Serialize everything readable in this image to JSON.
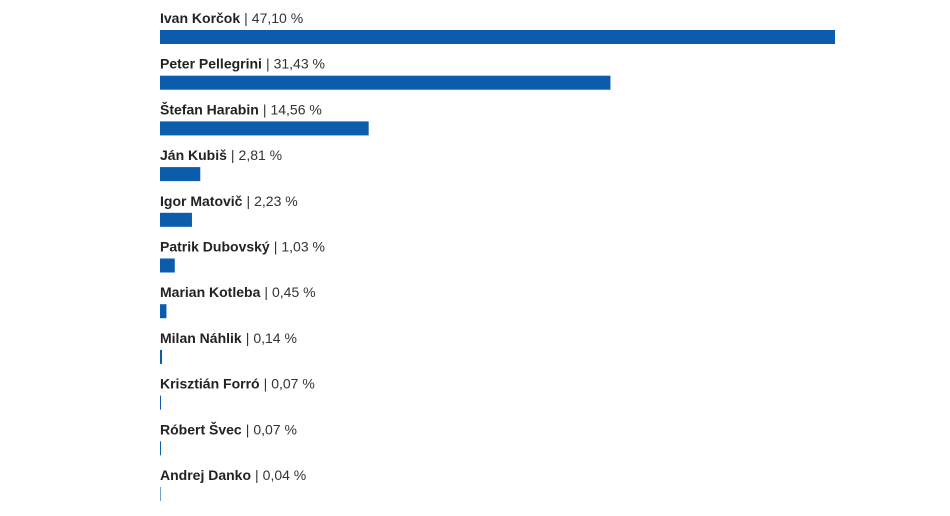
{
  "chart_data": {
    "type": "bar",
    "orientation": "horizontal",
    "separator": "|",
    "color": "#0b5cad",
    "categories": [
      "Ivan Korčok",
      "Peter Pellegrini",
      "Štefan Harabin",
      "Ján Kubiš",
      "Igor Matovič",
      "Patrik Dubovský",
      "Marian Kotleba",
      "Milan Náhlik",
      "Krisztián Forró",
      "Róbert Švec",
      "Andrej Danko"
    ],
    "values": [
      47.1,
      31.43,
      14.56,
      2.81,
      2.23,
      1.03,
      0.45,
      0.14,
      0.07,
      0.07,
      0.04
    ],
    "value_labels": [
      "47,10 %",
      "31,43 %",
      "14,56 %",
      "2,81 %",
      "2,23 %",
      "1,03 %",
      "0,45 %",
      "0,14 %",
      "0,07 %",
      "0,07 %",
      "0,04 %"
    ]
  }
}
